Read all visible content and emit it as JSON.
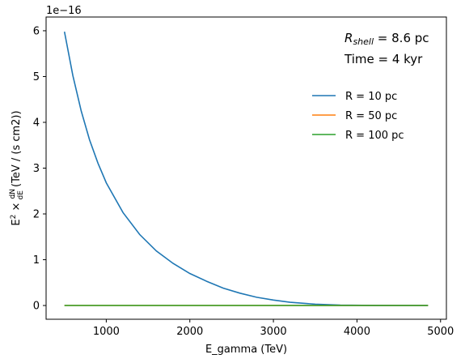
{
  "chart_data": {
    "type": "line",
    "title": "",
    "xlabel": "E_gamma (TeV)",
    "ylabel": "E^2 × dN/dE (TeV / (s cm2))",
    "y_offset_label": "1e−16",
    "y_scale_exponent": -16,
    "xlim": [
      280,
      5070
    ],
    "ylim": [
      -0.3,
      6.3
    ],
    "xticks": [
      1000,
      2000,
      3000,
      4000,
      5000
    ],
    "yticks": [
      0,
      1,
      2,
      3,
      4,
      5,
      6
    ],
    "grid": false,
    "legend_position": "upper-right",
    "annotations": [
      "R_shell = 8.6 pc",
      "Time = 4 kyr"
    ],
    "series": [
      {
        "name": "R = 10 pc",
        "color": "#1f77b4",
        "x": [
          500,
          600,
          700,
          800,
          900,
          1000,
          1200,
          1400,
          1600,
          1800,
          2000,
          2200,
          2400,
          2600,
          2800,
          3000,
          3200,
          3500,
          3800,
          4200,
          4600,
          4850
        ],
        "y": [
          5.98,
          5.02,
          4.25,
          3.62,
          3.11,
          2.68,
          2.03,
          1.55,
          1.19,
          0.92,
          0.7,
          0.53,
          0.38,
          0.27,
          0.18,
          0.12,
          0.07,
          0.03,
          0.01,
          0.003,
          0.001,
          0.0
        ]
      },
      {
        "name": "R = 50 pc",
        "color": "#ff7f0e",
        "x": [
          500,
          4850
        ],
        "y": [
          0.0,
          0.0
        ]
      },
      {
        "name": "R = 100 pc",
        "color": "#2ca02c",
        "x": [
          500,
          4850
        ],
        "y": [
          0.0,
          0.0
        ]
      }
    ]
  }
}
